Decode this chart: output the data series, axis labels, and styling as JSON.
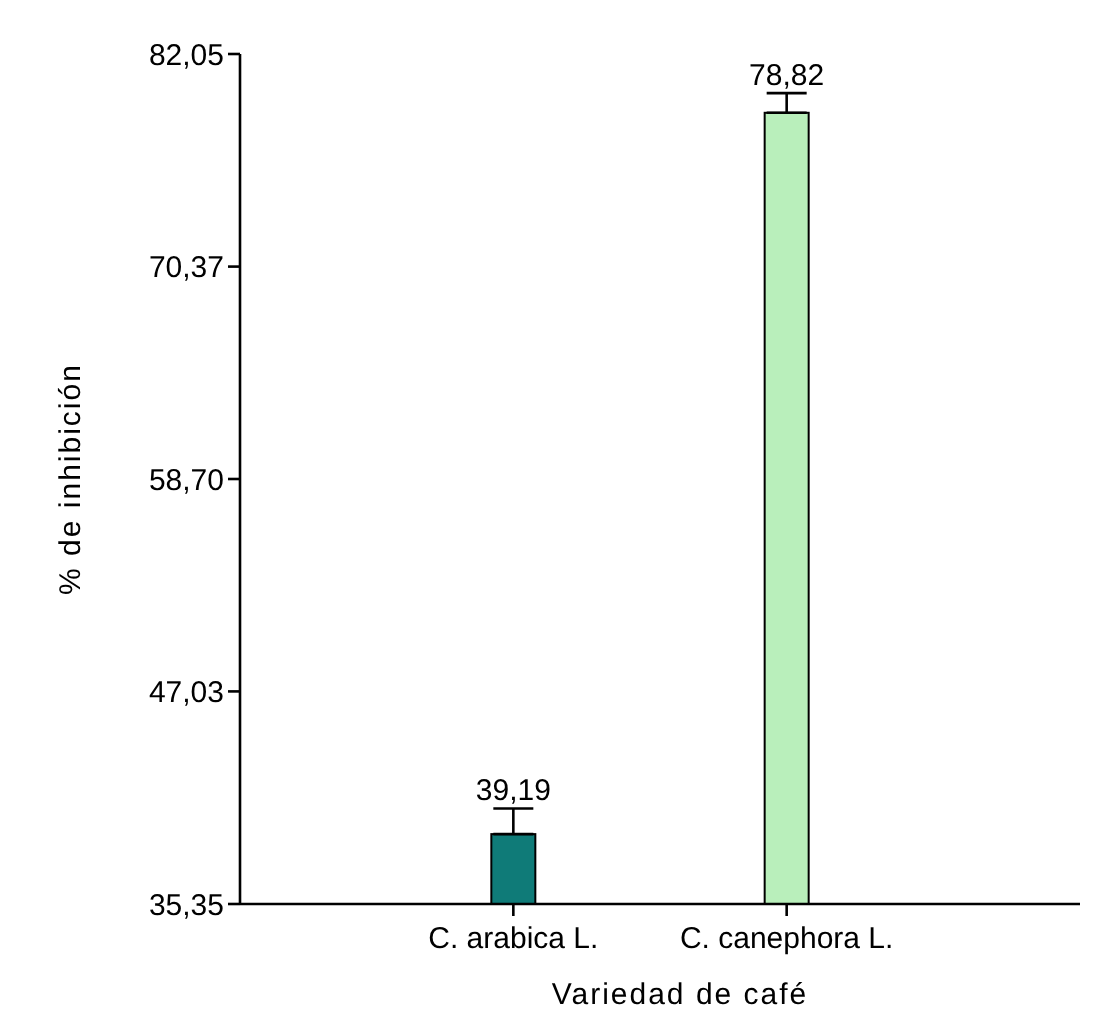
{
  "chart_data": {
    "type": "bar",
    "xlabel": "Variedad de café",
    "ylabel": "% de inhibición",
    "categories": [
      "C. arabica L.",
      "C. canephora L."
    ],
    "values": [
      39.19,
      78.82
    ],
    "colors": [
      "#0f7b78",
      "#b9efbb"
    ],
    "errors": [
      [
        39.19,
        40.6
      ],
      [
        78.82,
        79.9
      ]
    ],
    "value_labels": [
      "39,19",
      "78,82"
    ],
    "ylim": [
      35.35,
      82.05
    ],
    "yticks": [
      {
        "value": 35.35,
        "label": "35,35"
      },
      {
        "value": 47.03,
        "label": "47,03"
      },
      {
        "value": 58.7,
        "label": "58,70"
      },
      {
        "value": 70.37,
        "label": "70,37"
      },
      {
        "value": 82.05,
        "label": "82,05"
      }
    ],
    "grid": false
  }
}
